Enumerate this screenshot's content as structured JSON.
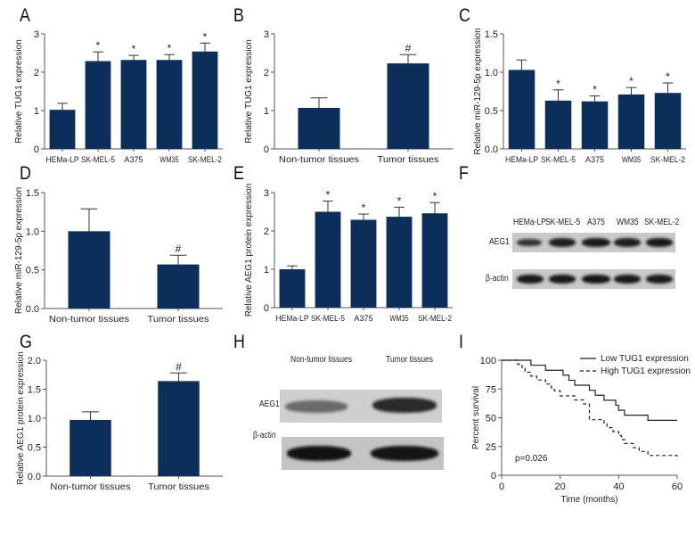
{
  "colors": {
    "bar": "#0b2f5a",
    "axis": "#555555",
    "text": "#222222"
  },
  "panel_labels": [
    "A",
    "B",
    "C",
    "D",
    "E",
    "F",
    "G",
    "H",
    "I"
  ],
  "chart_data": [
    {
      "panel": "A",
      "type": "bar",
      "ylabel": "Relative TUG1 expression",
      "ylim": [
        0,
        3
      ],
      "yticks": [
        0,
        1,
        2,
        3
      ],
      "ytick_labels": [
        "0",
        "1",
        "2",
        "3"
      ],
      "categories": [
        "HEMa-LP",
        "SK-MEL-5",
        "A375",
        "WM35",
        "SK-MEL-2"
      ],
      "values": [
        1.02,
        2.29,
        2.32,
        2.32,
        2.54
      ],
      "errors": [
        0.17,
        0.24,
        0.12,
        0.14,
        0.22
      ],
      "marks": [
        "",
        "*",
        "*",
        "*",
        "*"
      ]
    },
    {
      "panel": "B",
      "type": "bar",
      "ylabel": "Relative TUG1 expression",
      "ylim": [
        0,
        3
      ],
      "yticks": [
        0,
        1,
        2,
        3
      ],
      "ytick_labels": [
        "0",
        "1",
        "2",
        "3"
      ],
      "categories": [
        "Non-tumor tissues",
        "Tumor tissues"
      ],
      "values": [
        1.07,
        2.23
      ],
      "errors": [
        0.26,
        0.23
      ],
      "marks": [
        "",
        "#"
      ]
    },
    {
      "panel": "C",
      "type": "bar",
      "ylabel": "Relative miR-129-5p expression",
      "ylim": [
        0,
        1.5
      ],
      "yticks": [
        0,
        0.5,
        1,
        1.5
      ],
      "ytick_labels": [
        "0.0",
        "0.5",
        "1.0",
        "1.5"
      ],
      "categories": [
        "HEMa-LP",
        "SK-MEL-5",
        "A375",
        "WM35",
        "SK-MEL-2"
      ],
      "values": [
        1.03,
        0.63,
        0.62,
        0.71,
        0.73
      ],
      "errors": [
        0.13,
        0.14,
        0.07,
        0.09,
        0.13
      ],
      "marks": [
        "",
        "*",
        "*",
        "*",
        "*"
      ]
    },
    {
      "panel": "D",
      "type": "bar",
      "ylabel": "Relative miR-129-5p expression",
      "ylim": [
        0,
        1.5
      ],
      "yticks": [
        0,
        0.5,
        1,
        1.5
      ],
      "ytick_labels": [
        "0.0",
        "0.5",
        "1.0",
        "1.5"
      ],
      "categories": [
        "Non-tumor tissues",
        "Tumor tissues"
      ],
      "values": [
        1.0,
        0.57
      ],
      "errors": [
        0.29,
        0.12
      ],
      "marks": [
        "",
        "#"
      ]
    },
    {
      "panel": "E",
      "type": "bar",
      "ylabel": "Relative AEG1 protein expression",
      "ylim": [
        0,
        3
      ],
      "yticks": [
        0,
        1,
        2,
        3
      ],
      "ytick_labels": [
        "0",
        "1",
        "2",
        "3"
      ],
      "categories": [
        "HEMa-LP",
        "SK-MEL-5",
        "A375",
        "WM35",
        "SK-MEL-2"
      ],
      "values": [
        1.0,
        2.5,
        2.29,
        2.37,
        2.46
      ],
      "errors": [
        0.09,
        0.28,
        0.15,
        0.25,
        0.28
      ],
      "marks": [
        "",
        "*",
        "*",
        "*",
        "*"
      ]
    },
    {
      "panel": "G",
      "type": "bar",
      "ylabel": "Relative AEG1 protein expression",
      "ylim": [
        0,
        2
      ],
      "yticks": [
        0,
        0.5,
        1,
        1.5,
        2
      ],
      "ytick_labels": [
        "0.0",
        "0.5",
        "1.0",
        "1.5",
        "2.0"
      ],
      "categories": [
        "Non-tumor tissues",
        "Tumor tissues"
      ],
      "values": [
        0.97,
        1.64
      ],
      "errors": [
        0.14,
        0.14
      ],
      "marks": [
        "",
        "#"
      ]
    },
    {
      "panel": "I",
      "type": "line",
      "xlabel": "Time (months)",
      "ylabel": "Percent survival",
      "xlim": [
        0,
        60
      ],
      "ylim": [
        0,
        100
      ],
      "xticks": [
        0,
        20,
        40,
        60
      ],
      "yticks": [
        0,
        25,
        50,
        75,
        100
      ],
      "annotation": "p=0.026",
      "legend_position": "top-right",
      "series": [
        {
          "name": "Low TUG1 expression",
          "style": "solid",
          "x": [
            0,
            10,
            15,
            21,
            23,
            25,
            30,
            32,
            35,
            39,
            40,
            42,
            50,
            60
          ],
          "y": [
            100,
            95.7,
            91.3,
            87,
            82.6,
            78.3,
            73.9,
            69.6,
            65.2,
            60.9,
            56.5,
            52.2,
            47.8,
            47.8
          ]
        },
        {
          "name": "High TUG1 expression",
          "style": "dashed",
          "x": [
            0,
            5.5,
            7,
            8,
            10,
            12,
            15,
            17,
            18,
            20,
            25,
            28,
            30,
            35,
            36,
            38,
            40,
            41,
            42,
            45,
            47,
            50,
            60
          ],
          "y": [
            100,
            96.5,
            93,
            89.6,
            86.2,
            82.8,
            79.3,
            75.9,
            73.4,
            69,
            65.5,
            62,
            48.3,
            44.8,
            41.4,
            38,
            34.5,
            31,
            27.6,
            24,
            20.7,
            17.2,
            13.8
          ]
        }
      ]
    }
  ],
  "blot_F": {
    "lanes": [
      "HEMa-LP",
      "SK-MEL-5",
      "A375",
      "WM35",
      "SK-MEL-2"
    ],
    "rows": [
      "AEG1",
      "β-actin"
    ]
  },
  "blot_H": {
    "lanes": [
      "Non-tumor tissues",
      "Tumor tissues"
    ],
    "rows": [
      "AEG1",
      "β-actin"
    ]
  }
}
